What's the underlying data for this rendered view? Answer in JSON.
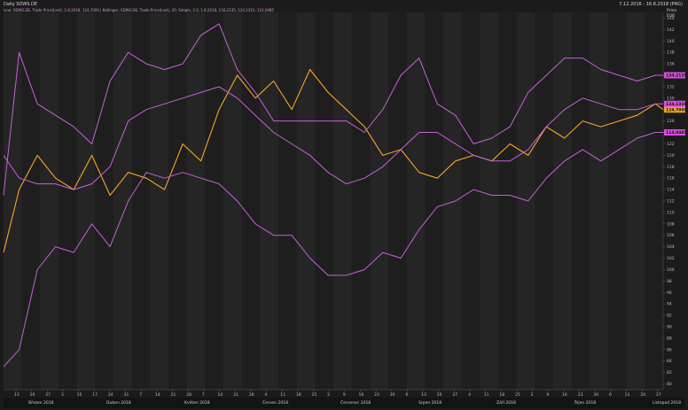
{
  "header": {
    "title": "Daily SDWS.DE",
    "legend": "Line; SDWS.DE, Trade Price(Last), 1.8.2018, 124,7000 | Bollinger, SDWS.DE, Trade Price(Last), 20, Simple, 2.0, 1.8.2018, 134,2135, 124,1310, 114,0485",
    "date_range": "7.12.2016 - 16.8.2018 (PRG)"
  },
  "price_axis": {
    "title": "Price",
    "currency": "EUR",
    "labels": [
      "144",
      "142",
      "140",
      "138",
      "136",
      "134",
      "132",
      "130",
      "128",
      "126",
      "124",
      "122",
      "120",
      "118",
      "116",
      "114",
      "112",
      "110",
      "108",
      "106",
      "104",
      "102",
      "100",
      "98",
      "96",
      "94",
      "92",
      "90",
      "88",
      "86",
      "84",
      "82",
      "80"
    ]
  },
  "price_badges": [
    {
      "text": "134,2135",
      "color": "#d94fe0"
    },
    {
      "text": "124,7000",
      "color": "#f5a623"
    },
    {
      "text": "124,1310",
      "color": "#d94fe0"
    },
    {
      "text": "114,0485",
      "color": "#d94fe0"
    }
  ],
  "x_axis": {
    "day_ticks": [
      "13",
      "20",
      "27",
      "3",
      "10",
      "17",
      "24",
      "31",
      "7",
      "14",
      "21",
      "28",
      "7",
      "14",
      "21",
      "28",
      "4",
      "11",
      "18",
      "25",
      "2",
      "9",
      "16",
      "23",
      "30",
      "6",
      "13",
      "20",
      "27",
      "4",
      "11",
      "18",
      "25",
      "2",
      "9",
      "16",
      "23",
      "30",
      "6",
      "13",
      "20",
      "27"
    ],
    "months": [
      "Březen 2018",
      "Duben 2018",
      "Květen 2018",
      "Červen 2018",
      "Červenec 2018",
      "Srpen 2018",
      "Září 2018",
      "Říjen 2018",
      "Listopad 2018"
    ]
  },
  "colors": {
    "price_line": "#f5a623",
    "bollinger": "#c561d8",
    "background": "#1b1b1b",
    "grid_dark": "#1e1e1e",
    "grid_light": "#252525"
  },
  "chart_data": {
    "type": "line",
    "title": "Daily SDWS.DE",
    "ylabel": "Price EUR",
    "ylim": [
      79,
      145
    ],
    "x": [
      "2018-03-07",
      "2018-03-13",
      "2018-03-20",
      "2018-03-27",
      "2018-04-03",
      "2018-04-10",
      "2018-04-17",
      "2018-04-24",
      "2018-05-01",
      "2018-05-08",
      "2018-05-15",
      "2018-05-22",
      "2018-05-29",
      "2018-06-05",
      "2018-06-12",
      "2018-06-19",
      "2018-06-26",
      "2018-07-03",
      "2018-07-10",
      "2018-07-17",
      "2018-07-24",
      "2018-07-31",
      "2018-08-07",
      "2018-08-14",
      "2018-08-21",
      "2018-08-28",
      "2018-09-04",
      "2018-09-11",
      "2018-09-18",
      "2018-09-25",
      "2018-10-02",
      "2018-10-09",
      "2018-10-16",
      "2018-10-23",
      "2018-10-30",
      "2018-11-06",
      "2018-11-13",
      "2018-11-16"
    ],
    "series": [
      {
        "name": "SDWS.DE",
        "color": "#f5a623",
        "values": [
          103,
          114,
          120,
          116,
          114,
          120,
          113,
          117,
          116,
          114,
          122,
          119,
          128,
          134,
          130,
          133,
          128,
          135,
          131,
          128,
          125,
          120,
          121,
          117,
          116,
          119,
          120,
          119,
          122,
          120,
          125,
          123,
          126,
          125,
          126,
          127,
          129,
          128
        ]
      },
      {
        "name": "Upper",
        "color": "#c561d8",
        "values": [
          113,
          138,
          129,
          127,
          125,
          122,
          133,
          138,
          136,
          135,
          136,
          141,
          143,
          135,
          131,
          126,
          126,
          126,
          126,
          126,
          124,
          128,
          134,
          137,
          129,
          127,
          122,
          123,
          125,
          131,
          134,
          137,
          137,
          135,
          134,
          133,
          134,
          134
        ]
      },
      {
        "name": "Middle",
        "color": "#c561d8",
        "values": [
          120,
          116,
          115,
          115,
          114,
          115,
          118,
          126,
          128,
          129,
          130,
          131,
          132,
          130,
          127,
          124,
          122,
          120,
          117,
          115,
          116,
          118,
          121,
          124,
          124,
          122,
          120,
          119,
          119,
          121,
          125,
          128,
          130,
          129,
          128,
          128,
          129,
          129
        ]
      },
      {
        "name": "Lower",
        "color": "#c561d8",
        "values": [
          83,
          86,
          100,
          104,
          103,
          108,
          104,
          112,
          117,
          116,
          117,
          116,
          115,
          112,
          108,
          106,
          106,
          102,
          99,
          99,
          100,
          103,
          102,
          107,
          111,
          112,
          114,
          113,
          113,
          112,
          116,
          119,
          121,
          119,
          121,
          123,
          124,
          124
        ]
      }
    ]
  }
}
